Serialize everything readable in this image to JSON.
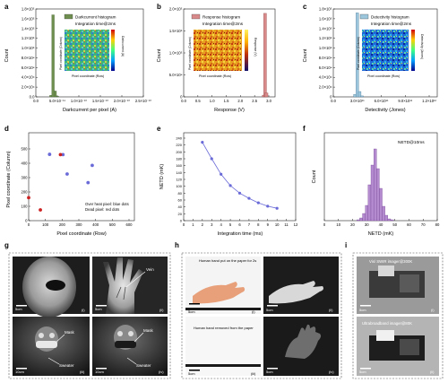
{
  "panels": {
    "a": {
      "label": "a",
      "legend": "Darkcurrent histogram",
      "note": "Integration time@2ms",
      "ylabel": "Count",
      "xlabel": "Darkcurrent per pixel (A)",
      "yticks": [
        "0.0",
        "2.0×10⁴",
        "4.0×10⁴",
        "6.0×10⁴",
        "8.0×10⁴",
        "1.0×10⁵",
        "1.2×10⁵",
        "1.4×10⁵",
        "1.6×10⁵",
        "1.8×10⁵"
      ],
      "xticks": [
        "0.0",
        "5.0×10⁻¹¹",
        "1.0×10⁻¹⁰",
        "1.5×10⁻¹⁰",
        "2.0×10⁻¹⁰",
        "2.5×10⁻¹⁰"
      ],
      "inset_x": "Pixel coordinate (Row)",
      "inset_y": "Pixel coordinate (Column)",
      "inset_cbar": "Darkcurrent (A)",
      "bar_color": "#6f8f50",
      "bars": [
        3000,
        168000,
        12000,
        1500
      ]
    },
    "b": {
      "label": "b",
      "legend": "Response histogram",
      "note": "Integration time@2ms",
      "ylabel": "Count",
      "xlabel": "Response (V)",
      "yticks": [
        "0",
        "5.0×10⁴",
        "1.0×10⁵",
        "1.5×10⁵",
        "2.0×10⁵"
      ],
      "xticks": [
        "0.0",
        "0.5",
        "1.0",
        "1.5",
        "2.0",
        "2.5",
        "3.0"
      ],
      "inset_x": "Pixel coordinate (Row)",
      "inset_y": "Pixel coordinate (Column)",
      "inset_cbar": "Response (V)",
      "bar_color": "#d88a8a",
      "bars": [
        4000,
        190000,
        9000
      ]
    },
    "c": {
      "label": "c",
      "legend": "Detectivity histogram",
      "note": "Integration time@2ms",
      "ylabel": "Count",
      "xlabel": "Detectivity (Jones)",
      "yticks": [
        "0",
        "2.0×10⁴",
        "4.0×10⁴",
        "6.0×10⁴",
        "8.0×10⁴",
        "1.0×10⁵",
        "1.2×10⁵",
        "1.4×10⁵",
        "1.6×10⁵",
        "1.8×10⁵"
      ],
      "xticks": [
        "0.0",
        "3.0×10¹¹",
        "6.0×10¹¹",
        "9.0×10¹¹",
        "1.2×10¹²"
      ],
      "inset_x": "Pixel coordinate (Row)",
      "inset_y": "Pixel coordinate (Column)",
      "inset_cbar": "Detectivity (Jones)",
      "bar_color": "#9cc6dc",
      "bars": [
        5000,
        172000,
        11000,
        2000
      ]
    },
    "d": {
      "label": "d",
      "xlabel": "Pixel coordinate (Row)",
      "ylabel": "Pixel coordinate (Column)",
      "xticks": [
        "0",
        "100",
        "200",
        "300",
        "400",
        "500",
        "600"
      ],
      "yticks": [
        "0",
        "100",
        "200",
        "300",
        "400",
        "500"
      ],
      "legend_line1": "Over heat pixel: blue dots",
      "legend_line2": "Dead pixel: red dots"
    },
    "e": {
      "label": "e",
      "xlabel": "Integration time (ms)",
      "ylabel": "NETD (mK)",
      "xticks": [
        "0",
        "1",
        "2",
        "3",
        "4",
        "5",
        "6",
        "7",
        "8",
        "9",
        "10",
        "11",
        "12"
      ],
      "yticks": [
        "0",
        "20",
        "40",
        "60",
        "80",
        "100",
        "120",
        "140",
        "160",
        "180",
        "200",
        "220",
        "240"
      ]
    },
    "f": {
      "label": "f",
      "note": "NETD@10ms",
      "xlabel": "NETD (mK)",
      "ylabel": "Count",
      "xticks": [
        "0",
        "10",
        "20",
        "30",
        "40",
        "50",
        "60",
        "70",
        "80"
      ]
    },
    "g": {
      "label": "g",
      "scale": "5cm",
      "scale_small": "10cm",
      "vein": "Vein",
      "mask": "Mask",
      "sweater": "Sweater",
      "sub": [
        "(i)",
        "(ii)",
        "(iii)",
        "(iv)"
      ]
    },
    "h": {
      "label": "h",
      "caption1": "Human hand put on the paper for 2s",
      "caption2": "Human hand removed from the paper",
      "scale": "5cm",
      "sub": [
        "(i)",
        "(ii)",
        "(iii)",
        "(iv)"
      ]
    },
    "i": {
      "label": "i",
      "caption1": "Vis/ SWIR imager@300K",
      "caption2": "Ultrabroadband imager@80K",
      "scale": "5cm",
      "sub": [
        "(i)",
        "(ii)"
      ]
    }
  },
  "chart_data": [
    {
      "type": "bar",
      "title": "",
      "xlabel": "Darkcurrent per pixel (A)",
      "ylabel": "Count",
      "series": [
        {
          "name": "Darkcurrent histogram",
          "x": [
            3.5e-11,
            4e-11,
            4.5e-11,
            5e-11
          ],
          "values": [
            3000,
            168000,
            12000,
            1500
          ]
        }
      ],
      "xlim": [
        0,
        2.5e-10
      ],
      "ylim": [
        0,
        180000
      ]
    },
    {
      "type": "bar",
      "title": "",
      "xlabel": "Response (V)",
      "ylabel": "Count",
      "series": [
        {
          "name": "Response histogram",
          "x": [
            2.8,
            2.85,
            2.9
          ],
          "values": [
            4000,
            190000,
            9000
          ]
        }
      ],
      "xlim": [
        0,
        3.2
      ],
      "ylim": [
        0,
        200000
      ]
    },
    {
      "type": "bar",
      "title": "",
      "xlabel": "Detectivity (Jones)",
      "ylabel": "Count",
      "series": [
        {
          "name": "Detectivity histogram",
          "x": [
            270000000000.0,
            300000000000.0,
            330000000000.0,
            360000000000.0
          ],
          "values": [
            5000,
            172000,
            11000,
            2000
          ]
        }
      ],
      "xlim": [
        0,
        1300000000000.0
      ],
      "ylim": [
        0,
        180000
      ]
    },
    {
      "type": "scatter",
      "title": "",
      "xlabel": "Pixel coordinate (Row)",
      "ylabel": "Pixel coordinate (Column)",
      "series": [
        {
          "name": "Over heat pixel",
          "color": "#6a6ad8",
          "x": [
            125,
            205,
            230,
            355,
            380
          ],
          "y": [
            462,
            460,
            325,
            265,
            385
          ]
        },
        {
          "name": "Dead pixel",
          "color": "#cc2222",
          "x": [
            0,
            70,
            190
          ],
          "y": [
            160,
            75,
            460
          ]
        }
      ],
      "xlim": [
        0,
        640
      ],
      "ylim": [
        0,
        512
      ]
    },
    {
      "type": "line",
      "title": "",
      "xlabel": "Integration time (ms)",
      "ylabel": "NETD (mK)",
      "series": [
        {
          "name": "",
          "x": [
            2,
            3,
            4,
            5,
            6,
            7,
            8,
            9,
            10
          ],
          "y": [
            228,
            180,
            135,
            102,
            80,
            65,
            52,
            42,
            36
          ]
        }
      ],
      "xlim": [
        0,
        12
      ],
      "ylim": [
        0,
        240
      ]
    },
    {
      "type": "bar",
      "title": "",
      "xlabel": "NETD (mK)",
      "ylabel": "Count",
      "categories": [
        "24",
        "26",
        "28",
        "30",
        "32",
        "34",
        "36",
        "38",
        "40",
        "42",
        "44",
        "46",
        "48"
      ],
      "values": [
        1,
        3,
        8,
        17,
        40,
        62,
        80,
        58,
        36,
        16,
        6,
        2,
        1
      ],
      "xlim": [
        0,
        80
      ],
      "ylim": [
        0,
        90
      ]
    }
  ]
}
